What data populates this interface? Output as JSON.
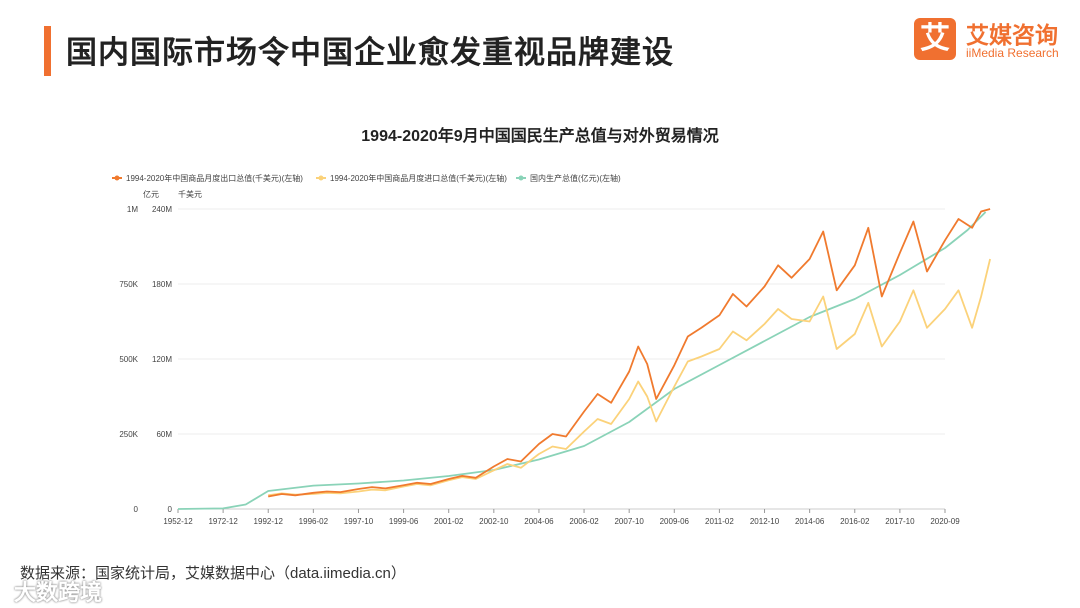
{
  "header": {
    "title": "国内国际市场令中国企业愈发重视品牌建设"
  },
  "logo": {
    "mark": "艾",
    "name_cn": "艾媒咨询",
    "name_en": "iiMedia Research"
  },
  "footer": {
    "source": "数据来源：国家统计局，艾媒数据中心（data.iimedia.cn）"
  },
  "watermark": {
    "text": "大数跨境"
  },
  "colors": {
    "accent": "#f07030",
    "export": "#f07a2e",
    "import": "#fbd27a",
    "gdp": "#8ad3b8"
  },
  "chart_data": {
    "type": "line",
    "title": "1994-2020年9月中国国民生产总值与对外贸易情况",
    "legend": [
      "1994-2020年中国商品月度出口总值(千美元)(左轴)",
      "1994-2020年中国商品月度进口总值(千美元)(左轴)",
      "国内生产总值(亿元)(左轴)"
    ],
    "axis_units": [
      "亿元",
      "千美元"
    ],
    "y_ticks_gdp": [
      "0",
      "250K",
      "500K",
      "750K",
      "1M"
    ],
    "y_ticks_trade": [
      "0",
      "60M",
      "120M",
      "180M",
      "240M"
    ],
    "x_ticks": [
      "1952-12",
      "1972-12",
      "1992-12",
      "1996-02",
      "1997-10",
      "1999-06",
      "2001-02",
      "2002-10",
      "2004-06",
      "2006-02",
      "2007-10",
      "2009-06",
      "2011-02",
      "2012-10",
      "2014-06",
      "2016-02",
      "2017-10",
      "2020-09"
    ],
    "ylim_gdp": [
      0,
      1000000
    ],
    "ylim_trade": [
      0,
      240000000
    ],
    "series": [
      {
        "name": "出口总值",
        "unit": "千美元",
        "x": [
          0,
          1,
          2,
          2.3,
          2.6,
          3,
          3.3,
          3.6,
          4,
          4.3,
          4.6,
          5,
          5.3,
          5.6,
          6,
          6.3,
          6.6,
          7,
          7.3,
          7.6,
          8,
          8.3,
          8.6,
          9,
          9.3,
          9.6,
          10,
          10.2,
          10.4,
          10.6,
          11,
          11.3,
          11.6,
          12,
          12.3,
          12.6,
          13,
          13.3,
          13.6,
          14,
          14.3,
          14.6,
          15,
          15.3,
          15.6,
          16,
          16.3,
          16.6,
          17,
          17.3,
          17.6,
          17.8,
          18
        ],
        "values": [
          null,
          null,
          10000000,
          12000000,
          11000000,
          13000000,
          14000000,
          13500000,
          16000000,
          17500000,
          16500000,
          19000000,
          21000000,
          20000000,
          24000000,
          26500000,
          25000000,
          34000000,
          40000000,
          38000000,
          52000000,
          60000000,
          58000000,
          78000000,
          92000000,
          85000000,
          110000000,
          130000000,
          116000000,
          88000000,
          115000000,
          138000000,
          145000000,
          155000000,
          172000000,
          162000000,
          178000000,
          195000000,
          185000000,
          200000000,
          222000000,
          175000000,
          195000000,
          225000000,
          170000000,
          205000000,
          230000000,
          190000000,
          215000000,
          232000000,
          225000000,
          238000000,
          240000000
        ]
      },
      {
        "name": "进口总值",
        "unit": "千美元",
        "x": [
          0,
          1,
          2,
          2.3,
          2.6,
          3,
          3.3,
          3.6,
          4,
          4.3,
          4.6,
          5,
          5.3,
          5.6,
          6,
          6.3,
          6.6,
          7,
          7.3,
          7.6,
          8,
          8.3,
          8.6,
          9,
          9.3,
          9.6,
          10,
          10.2,
          10.4,
          10.6,
          11,
          11.3,
          11.6,
          12,
          12.3,
          12.6,
          13,
          13.3,
          13.6,
          14,
          14.3,
          14.6,
          15,
          15.3,
          15.6,
          16,
          16.3,
          16.6,
          17,
          17.3,
          17.6,
          17.8,
          18
        ],
        "values": [
          null,
          null,
          11000000,
          12500000,
          11500000,
          12000000,
          13000000,
          12500000,
          14000000,
          15500000,
          15000000,
          18000000,
          20000000,
          19000000,
          23000000,
          25500000,
          24000000,
          31000000,
          36000000,
          33000000,
          44000000,
          50000000,
          48000000,
          62000000,
          72000000,
          68000000,
          88000000,
          102000000,
          90000000,
          70000000,
          98000000,
          118000000,
          122000000,
          128000000,
          142000000,
          135000000,
          148000000,
          160000000,
          152000000,
          150000000,
          170000000,
          128000000,
          140000000,
          165000000,
          130000000,
          150000000,
          175000000,
          145000000,
          160000000,
          175000000,
          145000000,
          170000000,
          200000000
        ]
      },
      {
        "name": "国内生产总值",
        "unit": "亿元",
        "x": [
          0,
          1,
          1.5,
          2,
          3,
          4,
          5,
          6,
          7,
          8,
          9,
          10,
          11,
          12,
          13,
          14,
          15,
          16,
          17,
          17.5,
          17.9
        ],
        "values": [
          0,
          2000,
          15000,
          60000,
          78000,
          85000,
          95000,
          110000,
          130000,
          165000,
          210000,
          290000,
          400000,
          480000,
          560000,
          640000,
          700000,
          780000,
          870000,
          930000,
          990000
        ]
      }
    ]
  }
}
